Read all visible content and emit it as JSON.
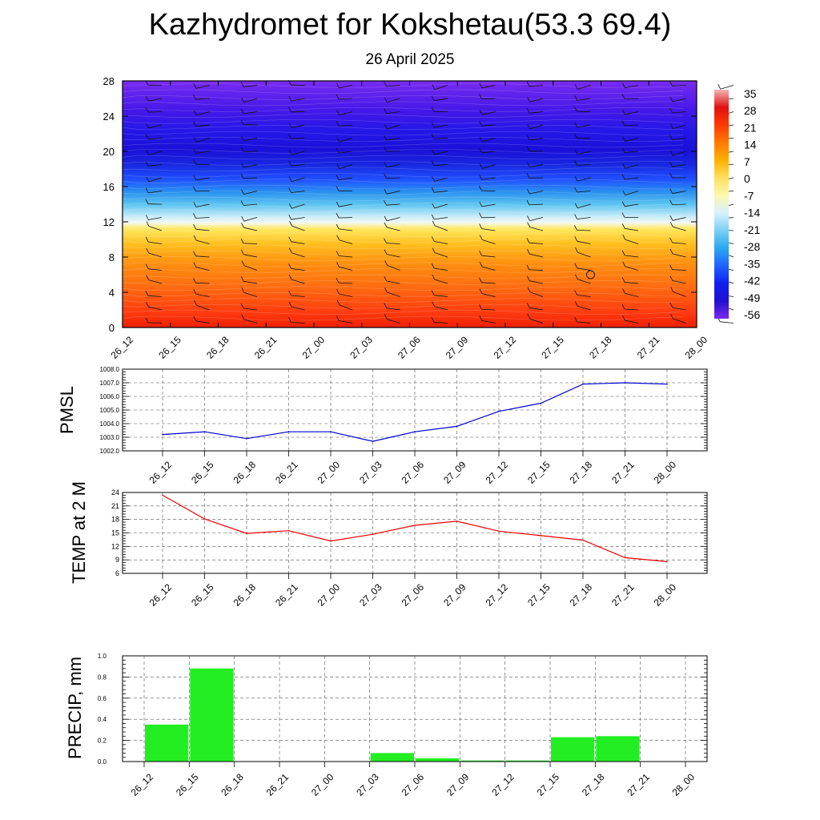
{
  "header": {
    "title": "Kazhydromet for Kokshetau(53.3 69.4)",
    "subtitle": "26 April 2025"
  },
  "chart_data": [
    {
      "type": "heatmap",
      "name": "temperature-height-section",
      "xlabel": "",
      "ylabel": "",
      "x_ticks": [
        "26_12",
        "26_15",
        "26_18",
        "26_21",
        "27_00",
        "27_03",
        "27_06",
        "27_09",
        "27_12",
        "27_15",
        "27_18",
        "27_21",
        "28_00"
      ],
      "y_ticks": [
        0,
        4,
        8,
        12,
        16,
        20,
        24,
        28
      ],
      "ylim": [
        0,
        28
      ],
      "colorbar": {
        "labels": [
          35,
          28,
          21,
          14,
          7,
          0,
          -7,
          -14,
          -21,
          -28,
          -35,
          -42,
          -49,
          -56
        ],
        "colors": [
          "#f4b5b5",
          "#e01010",
          "#ff3a00",
          "#ff7a00",
          "#ffb000",
          "#ffe060",
          "#fff7b0",
          "#d8f0ff",
          "#7ad0f5",
          "#2aa8f0",
          "#2060ff",
          "#1020f0",
          "#2010d0",
          "#7a2af0"
        ]
      },
      "wind_barbs": true,
      "calm_marker": {
        "x": "27_15",
        "y": 6
      }
    },
    {
      "type": "line",
      "name": "pmsl",
      "ylabel": "PMSL",
      "categories": [
        "26_12",
        "26_15",
        "26_18",
        "26_21",
        "27_00",
        "27_03",
        "27_06",
        "27_09",
        "27_12",
        "27_15",
        "27_18",
        "27_21",
        "28_00"
      ],
      "series": [
        {
          "values": [
            1003.2,
            1003.4,
            1002.9,
            1003.4,
            1003.4,
            1002.7,
            1003.4,
            1003.8,
            1004.9,
            1005.5,
            1006.9,
            1007.0,
            1006.9
          ],
          "color": "#0000cc"
        }
      ],
      "ylim": [
        1002.0,
        1008.0
      ],
      "y_ticks": [
        "1002.0",
        "1003.0",
        "1004.0",
        "1005.0",
        "1006.0",
        "1007.0",
        "1008.0"
      ],
      "grid": true
    },
    {
      "type": "line",
      "name": "temp2m",
      "ylabel": "TEMP at 2 M",
      "categories": [
        "26_12",
        "26_15",
        "26_18",
        "26_21",
        "27_00",
        "27_03",
        "27_06",
        "27_09",
        "27_12",
        "27_15",
        "27_18",
        "27_21",
        "28_00"
      ],
      "series": [
        {
          "values": [
            23.4,
            18.1,
            14.9,
            15.5,
            13.2,
            14.7,
            16.7,
            17.6,
            15.4,
            14.4,
            13.4,
            9.5,
            8.6
          ],
          "color": "#ee0000"
        }
      ],
      "ylim": [
        6,
        24
      ],
      "y_ticks": [
        "6",
        "9",
        "12",
        "15",
        "18",
        "21",
        "24"
      ],
      "grid": true
    },
    {
      "type": "bar",
      "name": "precip",
      "ylabel": "PRECIP, mm",
      "categories": [
        "26_12",
        "26_15",
        "26_18",
        "26_21",
        "27_00",
        "27_03",
        "27_06",
        "27_09",
        "27_12",
        "27_15",
        "27_18",
        "27_21",
        "28_00"
      ],
      "values": [
        0,
        0.35,
        0.88,
        0,
        0,
        0,
        0.08,
        0.03,
        0.01,
        0.01,
        0.23,
        0.24,
        0
      ],
      "bar_color": "#22ee22",
      "ylim": [
        0,
        1.0
      ],
      "y_ticks": [
        "0.0",
        "0.2",
        "0.4",
        "0.6",
        "0.8",
        "1.0"
      ],
      "grid": true
    }
  ]
}
